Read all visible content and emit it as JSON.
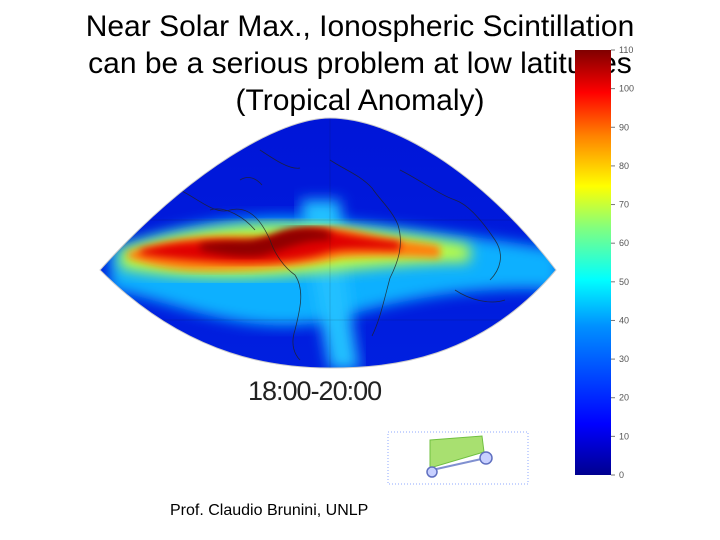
{
  "slide": {
    "title_lines": [
      "Near Solar Max., Ionospheric Scintillation",
      "can be a serious problem at low latitudes",
      "(Tropical Anomaly)"
    ],
    "time_label": "18:00-20:00",
    "credit": "Prof. Claudio Brunini, UNLP"
  },
  "colorbar": {
    "ticks": [
      "0",
      "10",
      "20",
      "30",
      "40",
      "50",
      "60",
      "70",
      "80",
      "90",
      "100",
      "110"
    ],
    "colors": [
      "#00008f",
      "#0000ff",
      "#0080ff",
      "#00ffff",
      "#80ff80",
      "#ffff00",
      "#ff8000",
      "#ff0000",
      "#800000"
    ]
  }
}
